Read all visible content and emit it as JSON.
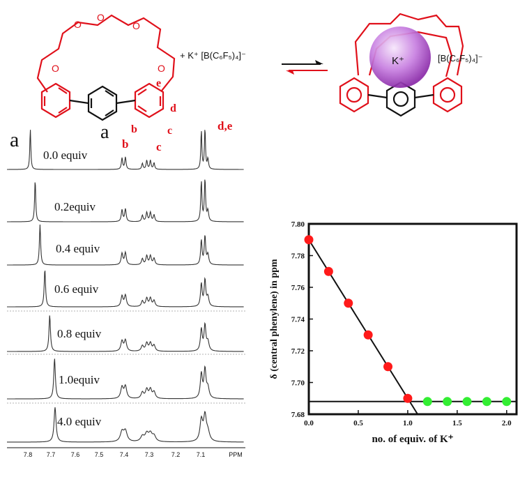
{
  "scheme": {
    "reagent": "+ K⁺ [B(C₆F₅)₄]⁻",
    "counter_ion": "[B(C₆F₅)₄]⁻",
    "cation": "K⁺",
    "oxygen": "O",
    "compound_label": "a",
    "proton_labels": {
      "b": "b",
      "c": "c",
      "d": "d",
      "e": "e"
    },
    "colors": {
      "ligand": "#e0101a",
      "phenylene": "#111111",
      "cation_sphere": "#b04fd0"
    }
  },
  "nmr": {
    "panel_label": "a",
    "peak_labels": {
      "b": "b",
      "c": "c",
      "de": "d,e"
    },
    "spectra": [
      {
        "label": "0.0 equiv",
        "central": 7.79
      },
      {
        "label": "0.2equiv",
        "central": 7.77
      },
      {
        "label": "0.4 equiv",
        "central": 7.75
      },
      {
        "label": "0.6 equiv",
        "central": 7.73
      },
      {
        "label": "0.8 equiv",
        "central": 7.71
      },
      {
        "label": "1.0equiv",
        "central": 7.69
      },
      {
        "label": "4.0 equiv",
        "central": 7.688
      }
    ],
    "xaxis": {
      "ticks": [
        "7.8",
        "7.7",
        "7.6",
        "7.5",
        "7.4",
        "7.3",
        "7.2",
        "7.1"
      ],
      "unit": "PPM"
    }
  },
  "chart_data": {
    "type": "scatter",
    "xlabel": "no. of equiv. of K⁺",
    "ylabel": "δ (central phenylene) in ppm",
    "xlim": [
      0,
      2.1
    ],
    "ylim": [
      7.68,
      7.8
    ],
    "xticks": [
      "0.0",
      "0.5",
      "1.0",
      "1.5",
      "2.0"
    ],
    "yticks": [
      "7.68",
      "7.70",
      "7.72",
      "7.74",
      "7.76",
      "7.78",
      "7.80"
    ],
    "series": [
      {
        "color": "#ff1a1a",
        "x": [
          0.0,
          0.2,
          0.4,
          0.6,
          0.8,
          1.0
        ],
        "y": [
          7.79,
          7.77,
          7.75,
          7.73,
          7.71,
          7.69
        ]
      },
      {
        "color": "#33ee33",
        "x": [
          1.2,
          1.4,
          1.6,
          1.8,
          2.0
        ],
        "y": [
          7.688,
          7.688,
          7.688,
          7.688,
          7.688
        ]
      }
    ],
    "fit_line": {
      "x": [
        0.0,
        1.12
      ],
      "y": [
        7.79,
        7.678
      ]
    },
    "plateau_line": {
      "y": 7.688
    },
    "grid": false,
    "legend": "none"
  }
}
